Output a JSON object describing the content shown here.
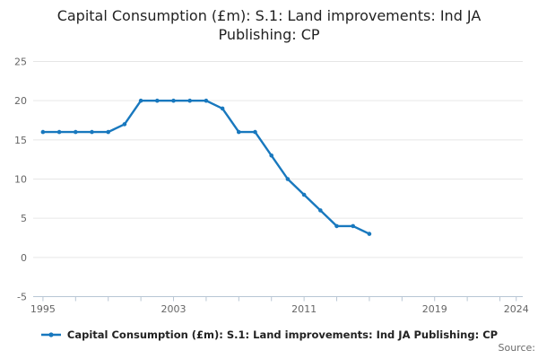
{
  "title_lines": [
    "Capital Consumption (£m): S.1: Land improvements: Ind JA",
    "Publishing: CP"
  ],
  "legend": {
    "label": "Capital Consumption (£m): S.1: Land improvements: Ind JA Publishing: CP"
  },
  "footer": {
    "source_label": "Source:"
  },
  "colors": {
    "line": "#1878be",
    "grid": "#e6e6e6",
    "axis": "#b8c6d4",
    "tick_label": "#666666",
    "title": "#222222"
  },
  "chart_data": {
    "type": "line",
    "title": "Capital Consumption (£m): S.1: Land improvements: Ind JA Publishing: CP",
    "series": [
      {
        "name": "Capital Consumption (£m): S.1: Land improvements: Ind JA Publishing: CP",
        "x": [
          1995,
          1996,
          1997,
          1998,
          1999,
          2000,
          2001,
          2002,
          2003,
          2004,
          2005,
          2006,
          2007,
          2008,
          2009,
          2010,
          2011,
          2012,
          2013,
          2014,
          2015
        ],
        "values": [
          16,
          16,
          16,
          16,
          16,
          17,
          20,
          20,
          20,
          20,
          20,
          19,
          16,
          16,
          13,
          10,
          8,
          6,
          4,
          4,
          3
        ]
      }
    ],
    "xlabel": "",
    "ylabel": "",
    "xlim": [
      1994.4,
      2024.4
    ],
    "ylim": [
      -5,
      25
    ],
    "yticks": [
      -5,
      0,
      5,
      10,
      15,
      20,
      25
    ],
    "xticks_all": [
      1995,
      1997,
      1999,
      2001,
      2003,
      2005,
      2007,
      2009,
      2011,
      2013,
      2015,
      2017,
      2019,
      2021,
      2023,
      2024
    ],
    "xticks_labeled": [
      1995,
      2003,
      2011,
      2019,
      2024
    ],
    "grid": "horizontal",
    "legend_position": "bottom",
    "markers": true
  }
}
